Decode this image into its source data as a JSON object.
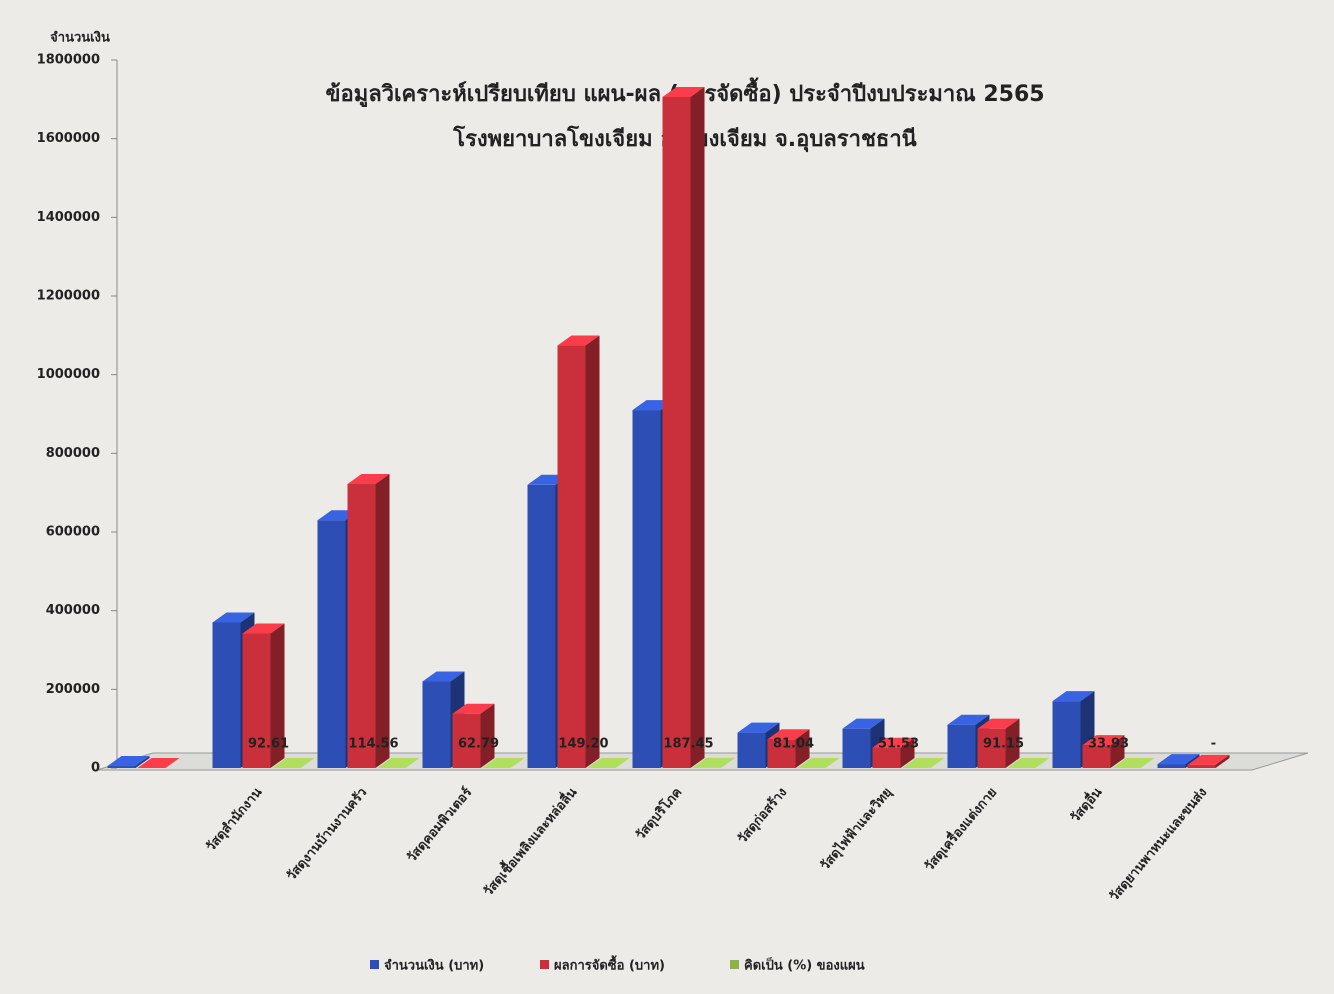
{
  "chart_data": {
    "type": "bar3d",
    "title": "ข้อมูลวิเคราะห์เปรียบเทียบ แผน-ผล (การจัดซื้อ) ประจำปีงบประมาณ 2565",
    "subtitle": "โรงพยาบาลโขงเจียม อ.โขงเจียม จ.อุบลราชธานี",
    "y_label": "จำนวนเงิน",
    "categories": [
      null,
      "วัสดุสำนักงาน",
      "วัสดุงานบ้านงานครัว",
      "วัสดุคอมพิวเตอร์",
      "วัสดุเชื้อเพลิงและหล่อลื่น",
      "วัสดุบริโภค",
      "วัสดุก่อสร้าง",
      "วัสดุไฟฟ้าและวิทยุ",
      "วัสดุเครื่องแต่งกาย",
      "วัสดุอื่น",
      "วัสดุยานพาหนะและขนส่ง"
    ],
    "series": [
      {
        "name": "จำนวนเงิน (บาท)",
        "color": "#2d4fb5",
        "values": [
          5000,
          370000,
          630000,
          220000,
          720000,
          910000,
          90000,
          100000,
          110000,
          170000,
          10000
        ]
      },
      {
        "name": "ผลการจัดซื้อ (บาท)",
        "color": "#c9303b",
        "values": [
          0,
          342000,
          722000,
          138000,
          1074000,
          1706000,
          73000,
          51500,
          100000,
          58000,
          8000
        ]
      },
      {
        "name": "คิดเป็น (%) ของแผน",
        "color": "#8db24a",
        "values": [
          null,
          92.61,
          114.56,
          62.79,
          149.2,
          187.45,
          81.04,
          51.53,
          91.15,
          33.93,
          null
        ],
        "value_labels": [
          null,
          "92.61",
          "114.56",
          "62.79",
          "149.20",
          "187.45",
          "81.04",
          "51.53",
          "91.15",
          "33.93",
          "-"
        ]
      }
    ],
    "ylim": [
      0,
      1800000
    ],
    "yticks": [
      0,
      200000,
      400000,
      600000,
      800000,
      1000000,
      1200000,
      1400000,
      1600000,
      1800000
    ]
  }
}
